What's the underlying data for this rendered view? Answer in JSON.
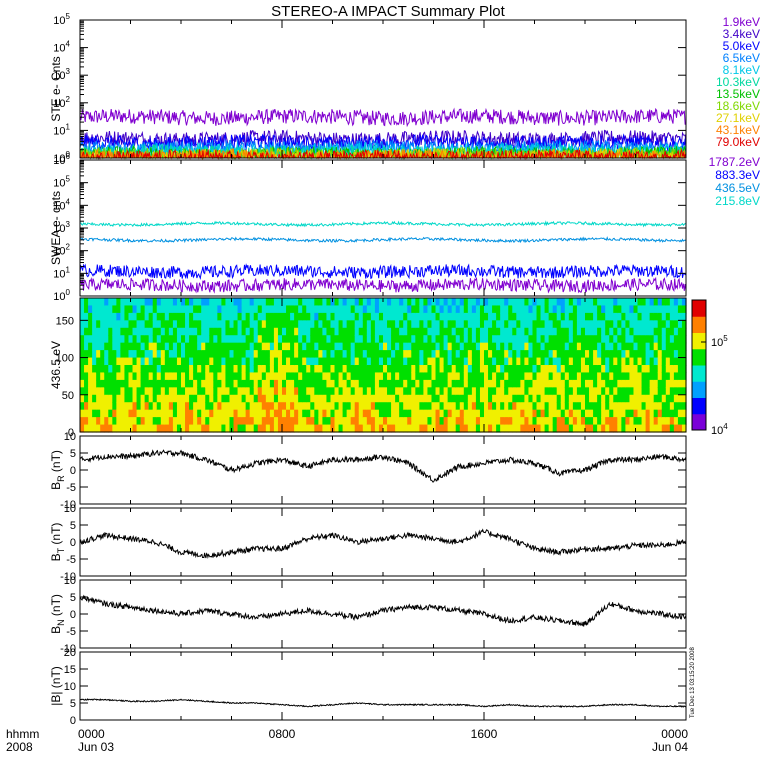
{
  "title": "STEREO-A IMPACT Summary Plot",
  "colors": {
    "axis": "#000000",
    "trace": "#000000",
    "colorbar": [
      "#7a00d8",
      "#0000ff",
      "#00a0ff",
      "#00e8d0",
      "#00e000",
      "#f0f000",
      "#ff8000",
      "#e00000"
    ]
  },
  "time_axis": {
    "label_line1": "hhmm",
    "label_line2": "2008",
    "ticks": [
      {
        "hhmm": "0000",
        "date": "Jun 03"
      },
      {
        "hhmm": "0800",
        "date": ""
      },
      {
        "hhmm": "1600",
        "date": ""
      },
      {
        "hhmm": "0000",
        "date": "Jun 04"
      }
    ],
    "range_hours": [
      0,
      24
    ]
  },
  "stamp": "Tue Dec 13 03:15:20 2008",
  "chart_data": [
    {
      "type": "line",
      "panel": "ste",
      "ylabel": "STE e- Cnts",
      "yscale": "log",
      "ylim": [
        1,
        100000
      ],
      "ytick_exponents": [
        "0",
        "1",
        "2",
        "3",
        "4",
        "5"
      ],
      "series": [
        {
          "name": "1.9keV",
          "color": "#8000d0",
          "level": 30
        },
        {
          "name": "3.4keV",
          "color": "#4000c8",
          "level": 5
        },
        {
          "name": "5.0keV",
          "color": "#0000ff",
          "level": 3.5
        },
        {
          "name": "6.5keV",
          "color": "#0080ff",
          "level": 2.2
        },
        {
          "name": "8.1keV",
          "color": "#00c8e8",
          "level": 1.8
        },
        {
          "name": "10.3keV",
          "color": "#00d8a0",
          "level": 1.5
        },
        {
          "name": "13.5keV",
          "color": "#00c000",
          "level": 1.3
        },
        {
          "name": "18.6keV",
          "color": "#80d800",
          "level": 1.2
        },
        {
          "name": "27.1keV",
          "color": "#e0d000",
          "level": 1.1
        },
        {
          "name": "43.1keV",
          "color": "#ff8000",
          "level": 1.05
        },
        {
          "name": "79.0keV",
          "color": "#e00000",
          "level": 1.02
        }
      ]
    },
    {
      "type": "line",
      "panel": "swea",
      "ylabel": "SWEA e- cnts",
      "yscale": "log",
      "ylim": [
        1,
        1000000
      ],
      "ytick_exponents": [
        "0",
        "1",
        "2",
        "3",
        "4",
        "5",
        "6"
      ],
      "series": [
        {
          "name": "1787.2eV",
          "color": "#8000d0",
          "level": 3
        },
        {
          "name": "883.3eV",
          "color": "#0000ff",
          "level": 12
        },
        {
          "name": "436.5eV",
          "color": "#0090e0",
          "level": 300
        },
        {
          "name": "215.8eV",
          "color": "#00d8c8",
          "level": 1500
        }
      ]
    },
    {
      "type": "heatmap",
      "panel": "pad",
      "ylabel": "436.5 eV",
      "ylim": [
        0,
        180
      ],
      "yticks": [
        "0",
        "50",
        "100",
        "150"
      ],
      "colorbar": {
        "scale": "log",
        "range": [
          10000,
          300000
        ],
        "tick_exponents": [
          "4",
          "5"
        ]
      }
    },
    {
      "type": "line",
      "panel": "br",
      "ylabel": "BR (nT)",
      "ylabel_main": "B",
      "ylabel_sub": "R",
      "ylabel_unit": " (nT)",
      "ylim": [
        -10,
        10
      ],
      "yticks": [
        "10",
        "5",
        "0",
        "-5",
        "-10"
      ],
      "x_hours": [
        0,
        1,
        2,
        3,
        4,
        5,
        6,
        7,
        8,
        9,
        10,
        11,
        12,
        13,
        14,
        15,
        16,
        17,
        18,
        19,
        20,
        21,
        22,
        23,
        24
      ],
      "values": [
        3,
        4,
        4,
        5,
        5,
        3,
        0,
        2,
        3,
        1,
        3,
        3,
        4,
        2,
        -3,
        1,
        2,
        3,
        2,
        -1,
        0,
        3,
        3,
        4,
        3
      ]
    },
    {
      "type": "line",
      "panel": "bt",
      "ylabel": "BT (nT)",
      "ylabel_main": "B",
      "ylabel_sub": "T",
      "ylabel_unit": " (nT)",
      "ylim": [
        -10,
        10
      ],
      "yticks": [
        "10",
        "5",
        "0",
        "-5",
        "-10"
      ],
      "x_hours": [
        0,
        1,
        2,
        3,
        4,
        5,
        6,
        7,
        8,
        9,
        10,
        11,
        12,
        13,
        14,
        15,
        16,
        17,
        18,
        19,
        20,
        21,
        22,
        23,
        24
      ],
      "values": [
        0,
        2,
        1,
        0,
        -3,
        -4,
        -3,
        -2,
        -2,
        1,
        2,
        0,
        1,
        2,
        1,
        0,
        3,
        1,
        -2,
        -3,
        -2,
        -2,
        -1,
        -1,
        0
      ]
    },
    {
      "type": "line",
      "panel": "bn",
      "ylabel": "BN (nT)",
      "ylabel_main": "B",
      "ylabel_sub": "N",
      "ylabel_unit": " (nT)",
      "ylim": [
        -10,
        10
      ],
      "yticks": [
        "10",
        "5",
        "0",
        "-5",
        "-10"
      ],
      "x_hours": [
        0,
        1,
        2,
        3,
        4,
        5,
        6,
        7,
        8,
        9,
        10,
        11,
        12,
        13,
        14,
        15,
        16,
        17,
        18,
        19,
        20,
        21,
        22,
        23,
        24
      ],
      "values": [
        5,
        3,
        2,
        1,
        0,
        1,
        0,
        -1,
        0,
        1,
        0,
        -1,
        1,
        2,
        2,
        1,
        0,
        -2,
        -1,
        -2,
        -3,
        3,
        1,
        0,
        -1
      ]
    },
    {
      "type": "line",
      "panel": "bmag",
      "ylabel": "|B| (nT)",
      "ylim": [
        0,
        20
      ],
      "yticks": [
        "20",
        "15",
        "10",
        "5",
        "0"
      ],
      "x_hours": [
        0,
        1,
        2,
        3,
        4,
        5,
        6,
        7,
        8,
        9,
        10,
        11,
        12,
        13,
        14,
        15,
        16,
        17,
        18,
        19,
        20,
        21,
        22,
        23,
        24
      ],
      "values": [
        6,
        6,
        5.5,
        5.5,
        6,
        5.5,
        5,
        5,
        4.5,
        4,
        4.5,
        5,
        4.5,
        4.5,
        4.5,
        4.5,
        4,
        4.5,
        4,
        4,
        4,
        4.5,
        4.5,
        4,
        4
      ]
    }
  ]
}
